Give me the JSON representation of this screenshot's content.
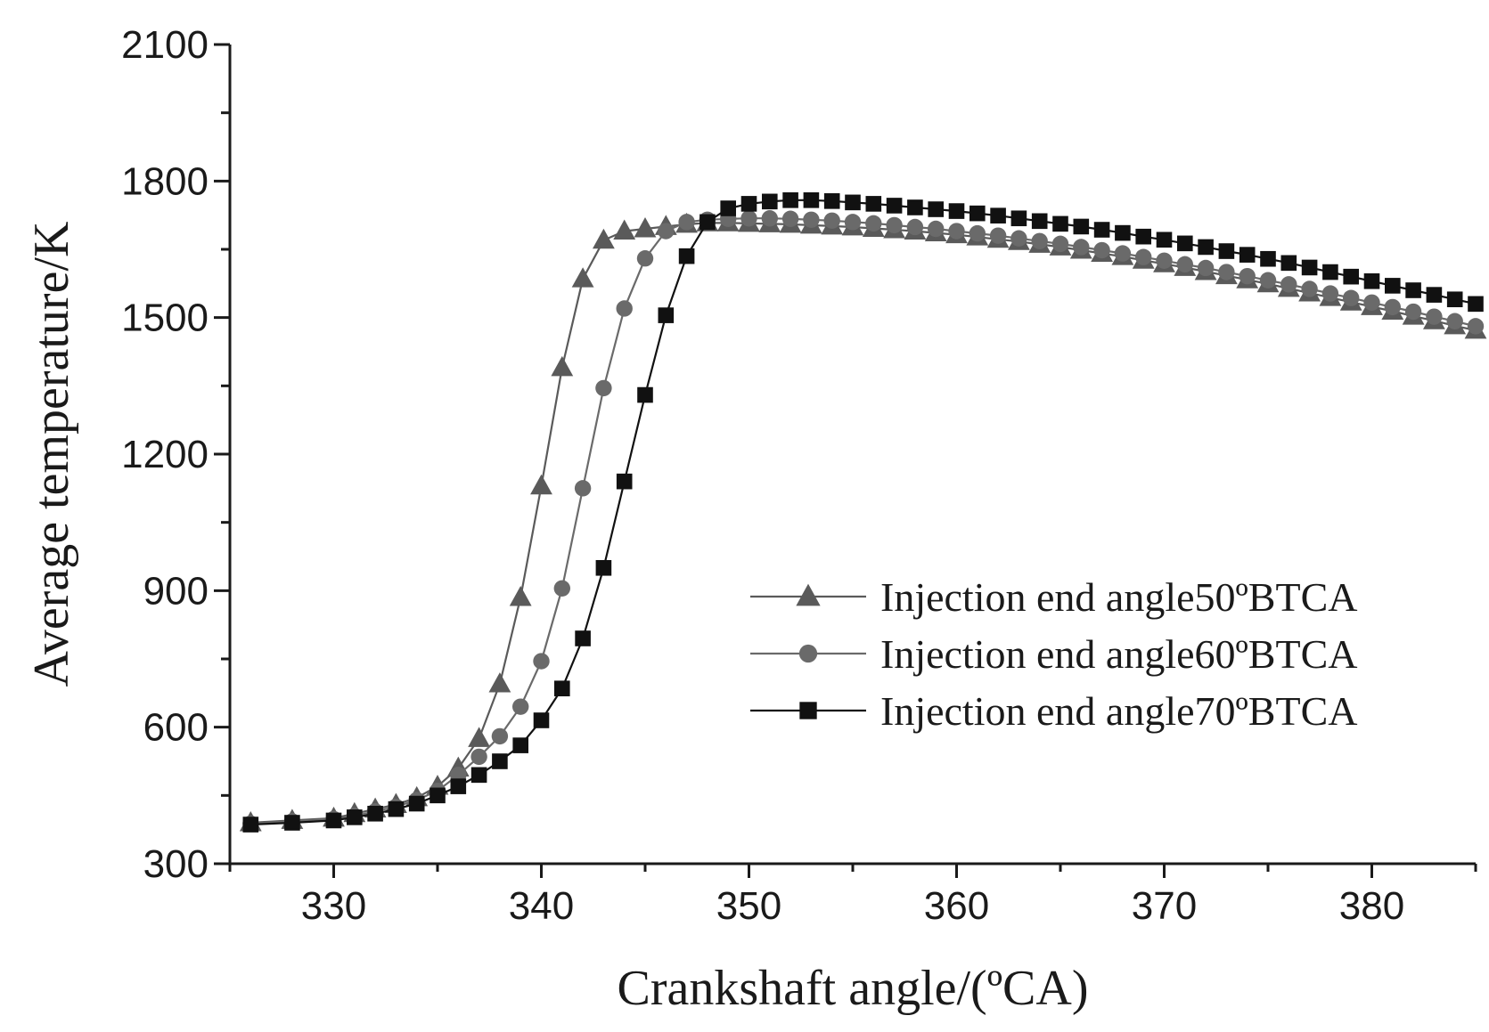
{
  "chart_data": {
    "type": "line",
    "xlabel": "Crankshaft angle/(ºCA)",
    "ylabel": "Average temperature/K",
    "xlim": [
      325,
      385
    ],
    "ylim": [
      300,
      2100
    ],
    "xticks": [
      330,
      340,
      350,
      360,
      370,
      380
    ],
    "yticks": [
      300,
      600,
      900,
      1200,
      1500,
      1800,
      2100
    ],
    "grid": false,
    "legend_position": "center-right",
    "series": [
      {
        "name": "Injection end angle50ºBTCA",
        "marker": "triangle",
        "color": "#5a5a5a",
        "x": [
          326,
          328,
          330,
          331,
          332,
          333,
          334,
          335,
          336,
          337,
          338,
          339,
          340,
          341,
          342,
          343,
          344,
          345,
          346,
          347,
          348,
          349,
          350,
          351,
          352,
          353,
          354,
          355,
          356,
          357,
          358,
          359,
          360,
          361,
          362,
          363,
          364,
          365,
          366,
          367,
          368,
          369,
          370,
          371,
          372,
          373,
          374,
          375,
          376,
          377,
          378,
          379,
          380,
          381,
          382,
          383,
          384,
          385
        ],
        "y": [
          390,
          395,
          400,
          410,
          420,
          430,
          445,
          470,
          510,
          575,
          695,
          885,
          1130,
          1390,
          1585,
          1670,
          1690,
          1695,
          1700,
          1705,
          1708,
          1708,
          1707,
          1706,
          1705,
          1703,
          1701,
          1699,
          1696,
          1693,
          1690,
          1686,
          1682,
          1677,
          1672,
          1667,
          1661,
          1655,
          1648,
          1641,
          1634,
          1626,
          1618,
          1610,
          1601,
          1592,
          1583,
          1574,
          1564,
          1554,
          1544,
          1534,
          1524,
          1514,
          1503,
          1493,
          1482,
          1472
        ]
      },
      {
        "name": "Injection end angle60ºBTCA",
        "marker": "circle",
        "color": "#6a6a6a",
        "x": [
          326,
          328,
          330,
          331,
          332,
          333,
          334,
          335,
          336,
          337,
          338,
          339,
          340,
          341,
          342,
          343,
          344,
          345,
          346,
          347,
          348,
          349,
          350,
          351,
          352,
          353,
          354,
          355,
          356,
          357,
          358,
          359,
          360,
          361,
          362,
          363,
          364,
          365,
          366,
          367,
          368,
          369,
          370,
          371,
          372,
          373,
          374,
          375,
          376,
          377,
          378,
          379,
          380,
          381,
          382,
          383,
          384,
          385
        ],
        "y": [
          388,
          393,
          398,
          405,
          415,
          425,
          440,
          460,
          495,
          535,
          580,
          645,
          745,
          905,
          1125,
          1345,
          1520,
          1630,
          1690,
          1710,
          1715,
          1717,
          1718,
          1718,
          1717,
          1715,
          1713,
          1710,
          1707,
          1703,
          1699,
          1695,
          1690,
          1685,
          1680,
          1674,
          1668,
          1662,
          1655,
          1648,
          1641,
          1633,
          1625,
          1617,
          1609,
          1600,
          1591,
          1582,
          1573,
          1563,
          1553,
          1543,
          1533,
          1523,
          1513,
          1502,
          1492,
          1481
        ]
      },
      {
        "name": "Injection end angle70ºBTCA",
        "marker": "square",
        "color": "#111111",
        "x": [
          326,
          328,
          330,
          331,
          332,
          333,
          334,
          335,
          336,
          337,
          338,
          339,
          340,
          341,
          342,
          343,
          344,
          345,
          346,
          347,
          348,
          349,
          350,
          351,
          352,
          353,
          354,
          355,
          356,
          357,
          358,
          359,
          360,
          361,
          362,
          363,
          364,
          365,
          366,
          367,
          368,
          369,
          370,
          371,
          372,
          373,
          374,
          375,
          376,
          377,
          378,
          379,
          380,
          381,
          382,
          383,
          384,
          385
        ],
        "y": [
          386,
          390,
          395,
          402,
          410,
          420,
          432,
          450,
          470,
          495,
          525,
          560,
          615,
          685,
          795,
          950,
          1140,
          1330,
          1505,
          1635,
          1710,
          1740,
          1750,
          1755,
          1758,
          1758,
          1756,
          1753,
          1750,
          1746,
          1742,
          1738,
          1734,
          1729,
          1724,
          1718,
          1712,
          1706,
          1700,
          1693,
          1686,
          1678,
          1671,
          1663,
          1655,
          1646,
          1638,
          1629,
          1620,
          1610,
          1600,
          1590,
          1580,
          1570,
          1560,
          1550,
          1540,
          1530
        ]
      }
    ]
  }
}
